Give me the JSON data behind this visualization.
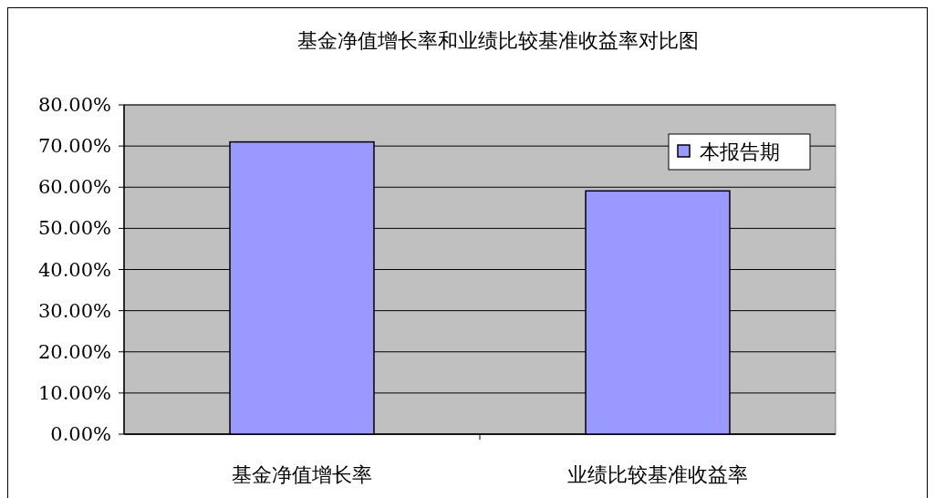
{
  "chart_data": {
    "type": "bar",
    "title": "基金净值增长率和业绩比较基准收益率对比图",
    "categories": [
      "基金净值增长率",
      "业绩比较基准收益率"
    ],
    "series": [
      {
        "name": "本报告期",
        "color": "#9999ff",
        "values": [
          71.0,
          59.1
        ]
      }
    ],
    "ylim": [
      0,
      80
    ],
    "yticks": [
      {
        "value": 0,
        "label": "0.00%"
      },
      {
        "value": 10,
        "label": "10.00%"
      },
      {
        "value": 20,
        "label": "20.00%"
      },
      {
        "value": 30,
        "label": "30.00%"
      },
      {
        "value": 40,
        "label": "40.00%"
      },
      {
        "value": 50,
        "label": "50.00%"
      },
      {
        "value": 60,
        "label": "60.00%"
      },
      {
        "value": 70,
        "label": "70.00%"
      },
      {
        "value": 80,
        "label": "80.00%"
      }
    ],
    "grid": "y",
    "legend": "right"
  }
}
